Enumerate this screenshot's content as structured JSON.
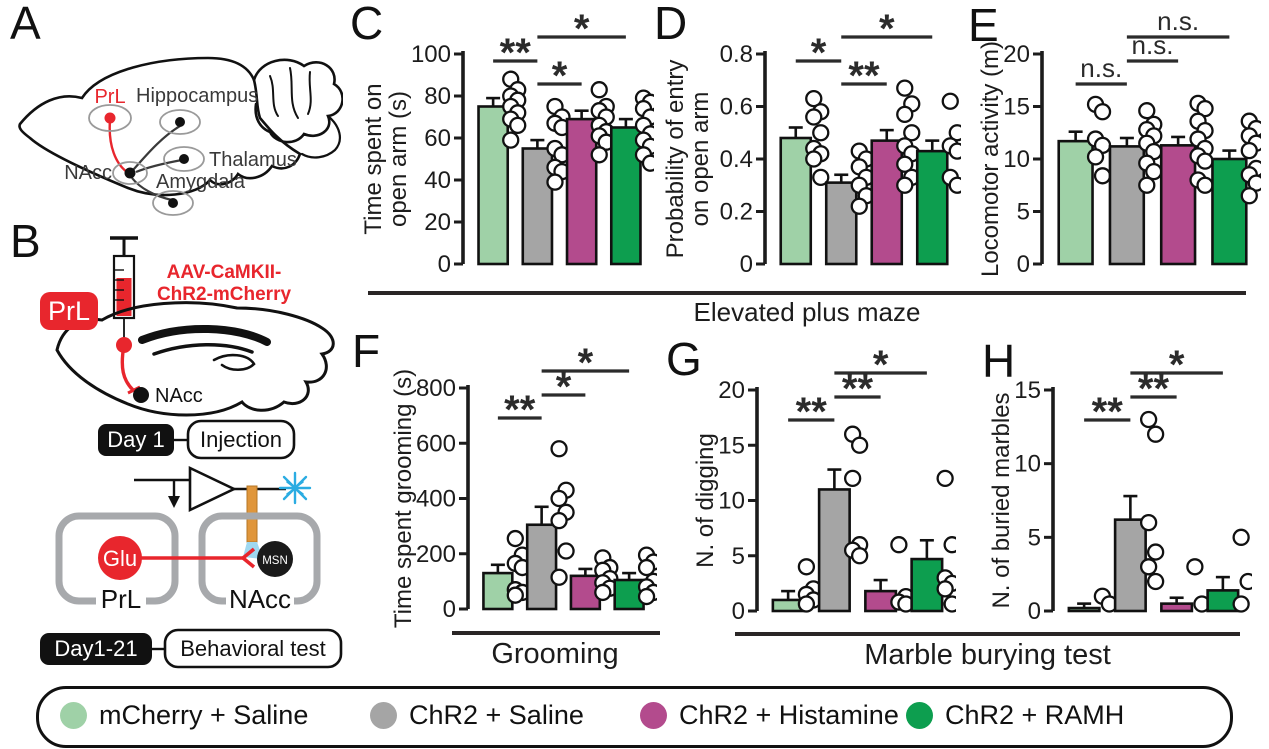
{
  "panels": {
    "a": "A",
    "b": "B",
    "c": "C",
    "d": "D",
    "e": "E",
    "f": "F",
    "g": "G",
    "h": "H"
  },
  "panelA": {
    "labels": {
      "prl": "PrL",
      "hippocampus": "Hippocampus",
      "thalamus": "Thalamus",
      "amygdala": "Amygdala",
      "nacc": "NAcc"
    }
  },
  "panelB": {
    "prl_badge": "PrL",
    "virus_label_line1": "AAV-CaMKII-",
    "virus_label_line2": "ChR2-mCherry",
    "nacc_label": "NAcc",
    "timeline1_day": "Day 1",
    "timeline1_event": "Injection",
    "glu_neuron": "Glu",
    "msn_neuron": "MSN",
    "prl_box": "PrL",
    "nacc_box": "NAcc",
    "timeline2_day": "Day1-21",
    "timeline2_event": "Behavioral test"
  },
  "sections": {
    "elevated_plus_maze": "Elevated plus maze",
    "grooming": "Grooming",
    "marble_burying": "Marble burying test"
  },
  "legend": {
    "items": [
      {
        "label": "mCherry + Saline",
        "color": "#9fd1a7"
      },
      {
        "label": "ChR2 + Saline",
        "color": "#a5a5a5"
      },
      {
        "label": "ChR2 + Histamine",
        "color": "#b34b8d"
      },
      {
        "label": "ChR2 + RAMH",
        "color": "#0d9e4f"
      }
    ]
  },
  "colors": {
    "accent_red": "#e8262d",
    "laser_blue": "#2bace2",
    "fiber_orange": "#e0963b",
    "box_gray": "#a7a9ac",
    "ink": "#1c1c1c"
  },
  "chart_data": [
    {
      "panel": "C",
      "type": "bar",
      "categories": [
        "mCherry + Saline",
        "ChR2 + Saline",
        "ChR2 + Histamine",
        "ChR2 + RAMH"
      ],
      "ylabel_lines": [
        "Time spent on",
        "open arm (s)"
      ],
      "ylim": [
        0,
        100
      ],
      "yticks": [
        0,
        20,
        40,
        60,
        80,
        100
      ],
      "values": [
        75,
        55,
        69,
        65
      ],
      "errors": [
        4,
        4,
        4,
        4
      ],
      "points": [
        [
          88,
          83,
          80,
          78,
          75,
          72,
          69,
          66,
          59
        ],
        [
          75,
          70,
          67,
          65,
          55,
          52,
          46,
          44,
          39
        ],
        [
          83,
          75,
          73,
          70,
          66,
          63,
          61,
          58,
          52
        ],
        [
          79,
          77,
          74,
          70,
          66,
          62,
          59,
          56,
          52,
          48
        ]
      ],
      "significance": [
        {
          "groups": [
            0,
            1
          ],
          "label": "**",
          "level": 1
        },
        {
          "groups": [
            1,
            2
          ],
          "label": "*",
          "level": 0
        },
        {
          "groups": [
            1,
            3
          ],
          "label": "*",
          "level": 2
        }
      ]
    },
    {
      "panel": "D",
      "type": "bar",
      "categories": [
        "mCherry + Saline",
        "ChR2 + Saline",
        "ChR2 + Histamine",
        "ChR2 + RAMH"
      ],
      "ylabel_lines": [
        "Probability of entry",
        "on open arm"
      ],
      "ylim": [
        0,
        0.8
      ],
      "yticks": [
        0,
        0.2,
        0.4,
        0.6,
        0.8
      ],
      "values": [
        0.48,
        0.31,
        0.47,
        0.43
      ],
      "errors": [
        0.04,
        0.03,
        0.04,
        0.04
      ],
      "points": [
        [
          0.63,
          0.58,
          0.56,
          0.5,
          0.44,
          0.42,
          0.4,
          0.33
        ],
        [
          0.43,
          0.4,
          0.37,
          0.33,
          0.3,
          0.26,
          0.22
        ],
        [
          0.67,
          0.61,
          0.57,
          0.5,
          0.45,
          0.42,
          0.38,
          0.33,
          0.3
        ],
        [
          0.62,
          0.5,
          0.45,
          0.43,
          0.33,
          0.3
        ]
      ],
      "significance": [
        {
          "groups": [
            0,
            1
          ],
          "label": "*",
          "level": 1
        },
        {
          "groups": [
            1,
            2
          ],
          "label": "**",
          "level": 0
        },
        {
          "groups": [
            1,
            3
          ],
          "label": "*",
          "level": 2
        }
      ]
    },
    {
      "panel": "E",
      "type": "bar",
      "categories": [
        "mCherry + Saline",
        "ChR2 + Saline",
        "ChR2 + Histamine",
        "ChR2 + RAMH"
      ],
      "ylabel_lines": [
        "Locomotor activity (m)"
      ],
      "ylim": [
        0,
        20
      ],
      "yticks": [
        0,
        5,
        10,
        15,
        20
      ],
      "values": [
        11.7,
        11.2,
        11.3,
        10.0
      ],
      "errors": [
        0.9,
        0.8,
        0.8,
        0.8
      ],
      "points": [
        [
          15.2,
          14.5,
          11.9,
          11.3,
          10.2,
          8.4
        ],
        [
          14.6,
          13.3,
          12.8,
          12.2,
          11.5,
          10.7,
          9.6,
          8.8,
          7.5
        ],
        [
          15.3,
          14.8,
          13.6,
          12.7,
          11.9,
          11.0,
          10.3,
          9.8,
          8.0,
          7.5
        ],
        [
          13.6,
          12.9,
          12.2,
          11.5,
          10.8,
          9.1,
          8.5,
          7.7,
          6.5
        ]
      ],
      "significance": [
        {
          "groups": [
            0,
            1
          ],
          "label": "n.s.",
          "level": 0
        },
        {
          "groups": [
            1,
            2
          ],
          "label": "n.s.",
          "level": 1
        },
        {
          "groups": [
            1,
            3
          ],
          "label": "n.s.",
          "level": 2
        }
      ]
    },
    {
      "panel": "F",
      "type": "bar",
      "categories": [
        "mCherry + Saline",
        "ChR2 + Saline",
        "ChR2 + Histamine",
        "ChR2 + RAMH"
      ],
      "ylabel_lines": [
        "Time spent grooming (s)"
      ],
      "ylim": [
        0,
        800
      ],
      "yticks": [
        0,
        200,
        400,
        600,
        800
      ],
      "values": [
        130,
        305,
        120,
        105
      ],
      "errors": [
        30,
        65,
        25,
        25
      ],
      "points": [
        [
          255,
          195,
          165,
          150,
          70,
          60,
          50
        ],
        [
          580,
          430,
          400,
          350,
          320,
          210,
          115
        ],
        [
          185,
          150,
          140,
          110,
          95,
          75,
          60
        ],
        [
          195,
          170,
          150,
          100,
          80,
          60,
          45
        ]
      ],
      "significance": [
        {
          "groups": [
            0,
            1
          ],
          "label": "**",
          "level": 0
        },
        {
          "groups": [
            1,
            2
          ],
          "label": "*",
          "level": 1
        },
        {
          "groups": [
            1,
            3
          ],
          "label": "*",
          "level": 2
        }
      ]
    },
    {
      "panel": "G",
      "type": "bar",
      "categories": [
        "mCherry + Saline",
        "ChR2 + Saline",
        "ChR2 + Histamine",
        "ChR2 + RAMH"
      ],
      "ylabel_lines": [
        "N. of digging"
      ],
      "ylim": [
        0,
        20
      ],
      "yticks": [
        0,
        5,
        10,
        15,
        20
      ],
      "values": [
        1,
        11,
        1.8,
        4.7
      ],
      "errors": [
        0.8,
        1.8,
        1.0,
        1.7
      ],
      "points": [
        [
          4,
          2,
          1.5,
          1,
          0.2
        ],
        [
          16,
          15,
          12,
          6,
          5.5,
          5
        ],
        [
          6,
          1.3,
          0.8,
          0.2
        ],
        [
          12,
          6,
          3,
          2.5,
          2,
          0.2
        ]
      ],
      "significance": [
        {
          "groups": [
            0,
            1
          ],
          "label": "**",
          "level": 0
        },
        {
          "groups": [
            1,
            2
          ],
          "label": "**",
          "level": 1
        },
        {
          "groups": [
            1,
            3
          ],
          "label": "*",
          "level": 2
        }
      ]
    },
    {
      "panel": "H",
      "type": "bar",
      "categories": [
        "mCherry + Saline",
        "ChR2 + Saline",
        "ChR2 + Histamine",
        "ChR2 + RAMH"
      ],
      "ylabel_lines": [
        "N. of buried marbles"
      ],
      "ylim": [
        0,
        15
      ],
      "yticks": [
        0,
        5,
        10,
        15
      ],
      "values": [
        0.2,
        6.2,
        0.5,
        1.4
      ],
      "errors": [
        0.3,
        1.6,
        0.4,
        0.9
      ],
      "points": [
        [
          1,
          0.1
        ],
        [
          13,
          12,
          6,
          4,
          3,
          2
        ],
        [
          3,
          0.1
        ],
        [
          5,
          2,
          0.1
        ]
      ],
      "significance": [
        {
          "groups": [
            0,
            1
          ],
          "label": "**",
          "level": 0
        },
        {
          "groups": [
            1,
            2
          ],
          "label": "**",
          "level": 1
        },
        {
          "groups": [
            1,
            3
          ],
          "label": "*",
          "level": 2
        }
      ]
    }
  ]
}
